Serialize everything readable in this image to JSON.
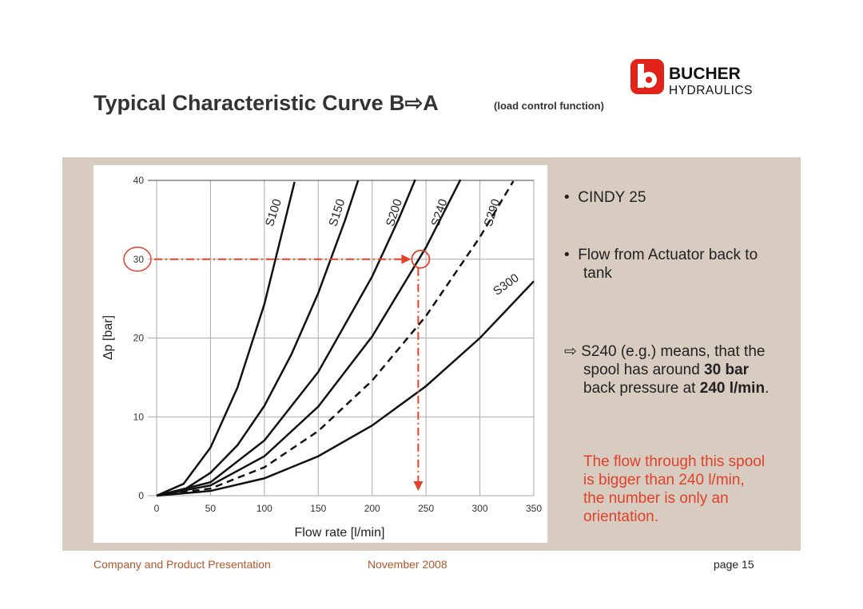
{
  "header": {
    "title": "Typical Characteristic Curve B⇨A",
    "title_note": "(load control function)",
    "logo_name": "BUCHER",
    "logo_sub": "HYDRAULICS"
  },
  "chart_data": {
    "type": "line",
    "xlabel": "Flow rate [l/min]",
    "ylabel": "Δp [bar]",
    "xlim": [
      0,
      350
    ],
    "xticks": [
      0,
      50,
      100,
      150,
      200,
      250,
      300,
      350
    ],
    "ylim": [
      0,
      40
    ],
    "yticks": [
      0,
      10,
      20,
      30,
      40
    ],
    "grid": true,
    "highlight": {
      "x": 245,
      "y": 30,
      "color": "#e0412a"
    },
    "series": [
      {
        "name": "S100",
        "color": "#111111",
        "dash": false,
        "x": [
          0,
          25,
          50,
          75,
          100,
          128
        ],
        "values": [
          0,
          1.5,
          6.1,
          13.7,
          24.3,
          39.8
        ]
      },
      {
        "name": "S150",
        "color": "#111111",
        "dash": false,
        "x": [
          0,
          25,
          50,
          75,
          100,
          125,
          150,
          175,
          187
        ],
        "values": [
          0,
          0.7,
          2.9,
          6.4,
          11.4,
          17.9,
          25.7,
          35.0,
          40.0
        ]
      },
      {
        "name": "S200",
        "color": "#111111",
        "dash": false,
        "x": [
          0,
          50,
          100,
          150,
          200,
          225,
          240
        ],
        "values": [
          0,
          1.7,
          7.0,
          15.7,
          27.8,
          35.2,
          40.1
        ]
      },
      {
        "name": "S240",
        "color": "#111111",
        "dash": false,
        "x": [
          0,
          50,
          100,
          150,
          200,
          250,
          282
        ],
        "values": [
          0,
          1.3,
          5.0,
          11.3,
          20.2,
          31.5,
          40.1
        ]
      },
      {
        "name": "S290",
        "color": "#111111",
        "dash": true,
        "x": [
          0,
          50,
          100,
          150,
          200,
          250,
          300,
          331
        ],
        "values": [
          0,
          0.9,
          3.6,
          8.2,
          14.6,
          22.8,
          32.8,
          39.9
        ]
      },
      {
        "name": "S300",
        "color": "#111111",
        "dash": false,
        "x": [
          0,
          50,
          100,
          150,
          200,
          250,
          300,
          350
        ],
        "values": [
          0,
          0.6,
          2.2,
          5.0,
          8.9,
          13.9,
          20.0,
          27.2
        ]
      }
    ]
  },
  "bullets": [
    "CINDY 25",
    "Flow from Actuator back to tank"
  ],
  "explanation": {
    "arrow": "⇨",
    "parts": [
      "S240 (e.g.) means, that the spool has around ",
      "30 bar",
      " back pressure at ",
      "240 l/min",
      "."
    ]
  },
  "note": "The flow through this spool is bigger than 240 l/min, the number is only an orientation.",
  "footer": {
    "left": "Company and Product Presentation",
    "center": "November 2008",
    "right": "page 15"
  }
}
